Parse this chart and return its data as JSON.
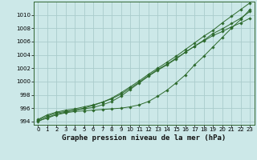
{
  "background_color": "#cce8e8",
  "grid_color": "#aacccc",
  "line_color": "#2d6a2d",
  "xlabel": "Graphe pression niveau de la mer (hPa)",
  "xlabel_fontsize": 6.5,
  "xtick_fontsize": 5.0,
  "ytick_fontsize": 5.0,
  "xlim": [
    -0.5,
    23.5
  ],
  "ylim": [
    993.5,
    1012.0
  ],
  "yticks": [
    994,
    996,
    998,
    1000,
    1002,
    1004,
    1006,
    1008,
    1010
  ],
  "xticks": [
    0,
    1,
    2,
    3,
    4,
    5,
    6,
    7,
    8,
    9,
    10,
    11,
    12,
    13,
    14,
    15,
    16,
    17,
    18,
    19,
    20,
    21,
    22,
    23
  ],
  "series": [
    [
      994.1,
      994.5,
      995.0,
      995.3,
      995.5,
      995.6,
      995.7,
      995.8,
      995.9,
      996.0,
      996.2,
      996.5,
      997.0,
      997.8,
      998.7,
      999.8,
      1001.0,
      1002.5,
      1003.8,
      1005.2,
      1006.6,
      1008.0,
      1009.3,
      1010.8
    ],
    [
      994.2,
      994.8,
      995.3,
      995.5,
      995.7,
      995.9,
      996.1,
      996.5,
      997.0,
      997.8,
      998.8,
      999.8,
      1000.8,
      1001.7,
      1002.5,
      1003.4,
      1004.4,
      1005.3,
      1006.2,
      1007.2,
      1007.9,
      1008.7,
      1009.5,
      1010.5
    ],
    [
      994.3,
      995.0,
      995.4,
      995.7,
      995.9,
      996.2,
      996.5,
      996.9,
      997.4,
      998.1,
      999.0,
      999.9,
      1000.9,
      1001.8,
      1002.6,
      1003.5,
      1004.4,
      1005.3,
      1006.1,
      1006.9,
      1007.5,
      1008.2,
      1008.8,
      1009.5
    ],
    [
      994.0,
      994.6,
      995.1,
      995.4,
      995.7,
      996.0,
      996.4,
      996.9,
      997.5,
      998.3,
      999.2,
      1000.1,
      1001.1,
      1002.0,
      1002.9,
      1003.8,
      1004.8,
      1005.8,
      1006.8,
      1007.7,
      1008.8,
      1009.8,
      1010.8,
      1011.8
    ]
  ]
}
